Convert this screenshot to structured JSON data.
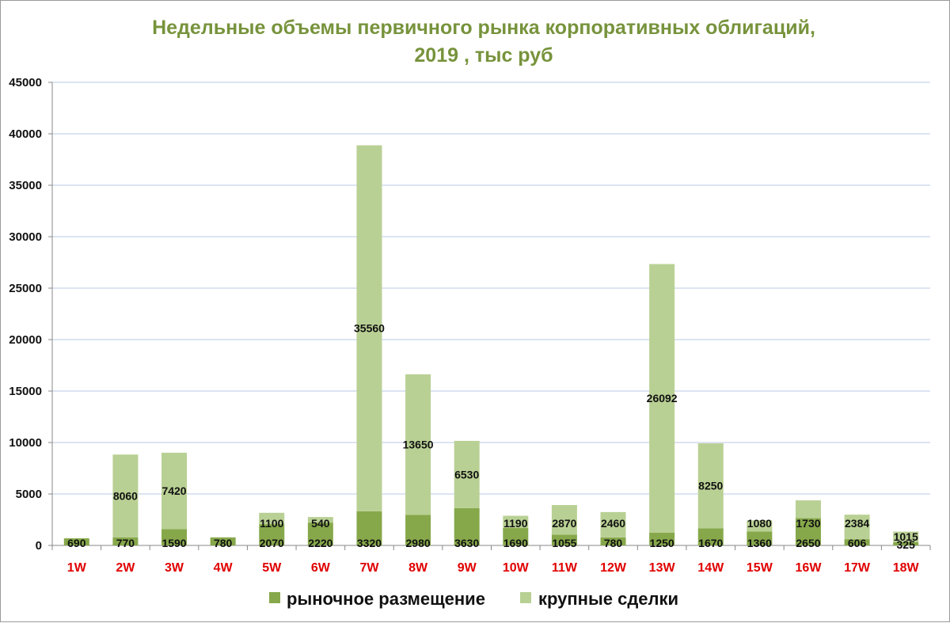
{
  "chart_data": {
    "type": "bar",
    "stacked": true,
    "title": [
      "Недельные объемы первичного рынка корпоративных облигаций,",
      "2019 , тыс руб"
    ],
    "xlabel": "",
    "ylabel": "",
    "ylim": [
      0,
      45000
    ],
    "yticks": [
      0,
      5000,
      10000,
      15000,
      20000,
      25000,
      30000,
      35000,
      40000,
      45000
    ],
    "grid": true,
    "legend": "bottom",
    "categories": [
      "1W",
      "2W",
      "3W",
      "4W",
      "5W",
      "6W",
      "7W",
      "8W",
      "9W",
      "10W",
      "11W",
      "12W",
      "13W",
      "14W",
      "15W",
      "16W",
      "17W",
      "18W"
    ],
    "series": [
      {
        "name": "рыночное размещение",
        "values": [
          690,
          770,
          1590,
          780,
          2070,
          2220,
          3320,
          2980,
          3630,
          1690,
          1055,
          780,
          1250,
          1670,
          1360,
          2650,
          606,
          325
        ]
      },
      {
        "name": "крупные сделки",
        "values": [
          null,
          8060,
          7420,
          null,
          1100,
          540,
          35560,
          13650,
          6530,
          1190,
          2870,
          2460,
          26092,
          8250,
          1080,
          1730,
          2384,
          1015
        ]
      }
    ],
    "colors": {
      "market": "#86a84a",
      "large": "#b9d094",
      "title": "#77933c",
      "xtick": "#e00000",
      "grid": "#b9c9e6",
      "axis": "#888888"
    }
  }
}
